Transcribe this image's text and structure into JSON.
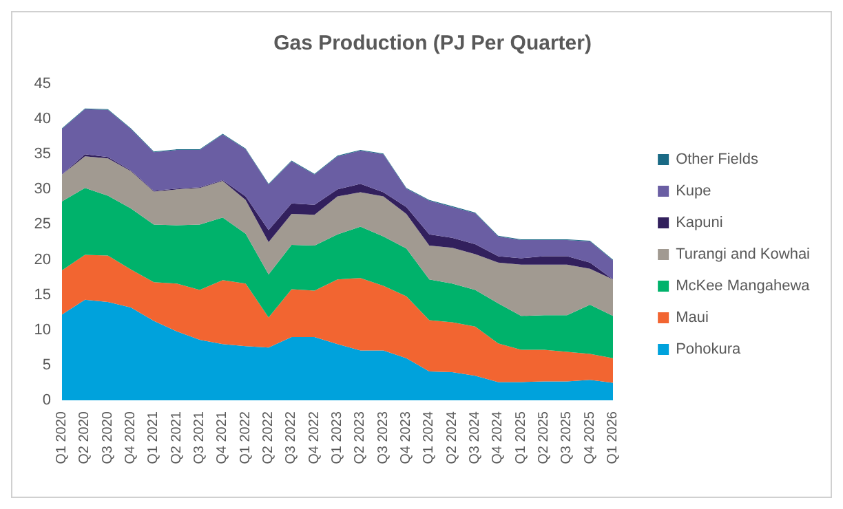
{
  "chart_data": {
    "type": "area",
    "title": "Gas Production (PJ Per Quarter)",
    "stacked": true,
    "categories": [
      "Q1 2020",
      "Q2 2020",
      "Q3 2020",
      "Q4 2020",
      "Q1 2021",
      "Q2 2021",
      "Q3 2021",
      "Q4 2021",
      "Q1 2022",
      "Q2 2022",
      "Q3 2022",
      "Q4 2022",
      "Q1 2023",
      "Q2 2023",
      "Q3 2023",
      "Q4 2023",
      "Q1 2024",
      "Q2 2024",
      "Q3 2024",
      "Q4 2024",
      "Q1 2025",
      "Q2 2025",
      "Q3 2025",
      "Q4 2025",
      "Q1 2026"
    ],
    "series": [
      {
        "name": "Pohokura",
        "color": "#00a2dc",
        "values": [
          12.2,
          14.3,
          14.0,
          13.2,
          11.3,
          9.8,
          8.6,
          8.0,
          7.7,
          7.5,
          9.0,
          9.0,
          8.0,
          7.1,
          7.1,
          6.0,
          4.1,
          4.0,
          3.5,
          2.6,
          2.6,
          2.7,
          2.7,
          2.9,
          2.5
        ]
      },
      {
        "name": "Maui",
        "color": "#f26531",
        "values": [
          6.3,
          6.4,
          6.6,
          5.4,
          5.5,
          6.8,
          7.1,
          9.1,
          8.9,
          4.3,
          6.8,
          6.6,
          9.2,
          10.3,
          9.2,
          8.8,
          7.3,
          7.1,
          7.0,
          5.5,
          4.6,
          4.5,
          4.2,
          3.7,
          3.5
        ]
      },
      {
        "name": "McKee Mangahewa",
        "color": "#00b26b",
        "values": [
          9.8,
          9.5,
          8.5,
          8.7,
          8.2,
          8.3,
          9.3,
          8.9,
          7.1,
          6.1,
          6.3,
          6.4,
          6.4,
          7.3,
          7.0,
          6.8,
          5.8,
          5.5,
          5.2,
          5.7,
          4.8,
          4.9,
          5.2,
          7.0,
          6.0
        ]
      },
      {
        "name": "Turangi and Kowhai",
        "color": "#a19a91",
        "values": [
          3.8,
          4.5,
          5.3,
          5.3,
          4.7,
          5.1,
          5.2,
          5.2,
          4.8,
          4.6,
          4.4,
          4.4,
          5.4,
          4.9,
          5.7,
          4.9,
          4.8,
          5.1,
          5.1,
          5.8,
          7.3,
          7.2,
          7.2,
          5.1,
          5.2
        ]
      },
      {
        "name": "Kapuni",
        "color": "#32205d",
        "values": [
          0.0,
          0.3,
          0.2,
          0.1,
          0.1,
          0.1,
          0.1,
          0.1,
          0.5,
          1.7,
          1.5,
          1.4,
          1.0,
          1.2,
          0.6,
          1.0,
          1.6,
          1.4,
          1.4,
          0.9,
          0.9,
          1.2,
          1.2,
          0.9,
          0.0
        ]
      },
      {
        "name": "Kupe",
        "color": "#6a5ea3",
        "values": [
          6.5,
          6.4,
          6.7,
          5.9,
          5.5,
          5.5,
          5.3,
          6.5,
          6.7,
          6.5,
          6.0,
          4.3,
          4.7,
          4.7,
          5.4,
          2.6,
          4.8,
          4.4,
          4.4,
          2.8,
          2.6,
          2.3,
          2.3,
          3.0,
          2.7
        ]
      },
      {
        "name": "Other Fields",
        "color": "#1a6a85",
        "values": [
          0.1,
          0.1,
          0.1,
          0.1,
          0.1,
          0.1,
          0.1,
          0.1,
          0.1,
          0.1,
          0.1,
          0.1,
          0.1,
          0.1,
          0.1,
          0.1,
          0.1,
          0.1,
          0.1,
          0.1,
          0.1,
          0.1,
          0.1,
          0.1,
          0.1
        ]
      }
    ],
    "ylim": [
      0,
      45
    ],
    "yticks": [
      0,
      5,
      10,
      15,
      20,
      25,
      30,
      35,
      40,
      45
    ],
    "grid": false,
    "legend": "right"
  }
}
